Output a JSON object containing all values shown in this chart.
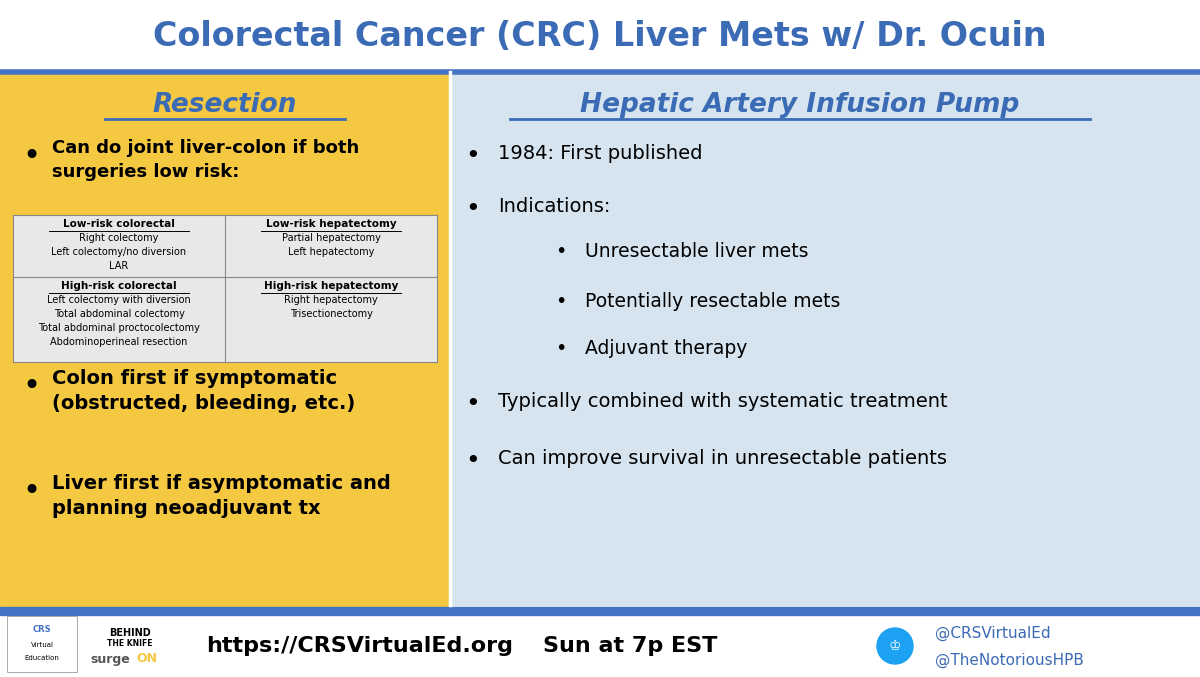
{
  "title": "Colorectal Cancer (CRC) Liver Mets w/ Dr. Ocuin",
  "title_color": "#3B6BB5",
  "title_bg": "#FFFFFF",
  "header_bar_color": "#4472C4",
  "left_bg": "#F5C842",
  "right_bg": "#D6E4F0",
  "footer_bg": "#FFFFFF",
  "footer_bar_color": "#4472C4",
  "left_title": "Resection",
  "left_title_color": "#3B6BB5",
  "right_title": "Hepatic Artery Infusion Pump",
  "right_title_color": "#3B6BB5",
  "left_bullet1": "Can do joint liver-colon if both\nsurgeries low risk:",
  "left_bullet2": "Colon first if symptomatic\n(obstructed, bleeding, etc.)",
  "left_bullet3": "Liver first if asymptomatic and\nplanning neoadjuvant tx",
  "table_header1": "Low-risk colorectal",
  "table_col1_rows": [
    "Right colectomy",
    "Left colectomy/no diversion",
    "LAR"
  ],
  "table_header2": "Low-risk hepatectomy",
  "table_col2_rows": [
    "Partial hepatectomy",
    "Left hepatectomy"
  ],
  "table_header3": "High-risk colorectal",
  "table_col3_rows": [
    "Left colectomy with diversion",
    "Total abdominal colectomy",
    "Total abdominal proctocolectomy",
    "Abdominoperineal resection"
  ],
  "table_header4": "High-risk hepatectomy",
  "table_col4_rows": [
    "Right hepatectomy",
    "Trisectionectomy"
  ],
  "right_bullet1": "1984: First published",
  "right_bullet2": "Indications:",
  "right_sub_bullet1": "Unresectable liver mets",
  "right_sub_bullet2": "Potentially resectable mets",
  "right_sub_bullet3": "Adjuvant therapy",
  "right_bullet3": "Typically combined with systematic treatment",
  "right_bullet4": "Can improve survival in unresectable patients",
  "footer_url": "https://CRSVirtualEd.org",
  "footer_time": "Sun at 7p EST",
  "footer_twitter1": "@CRSVirtualEd",
  "footer_twitter2": "@TheNotoriousHPB",
  "table_bg_light": "#E8E8E8",
  "divider_color": "#FFFFFF",
  "border_color": "#888888"
}
